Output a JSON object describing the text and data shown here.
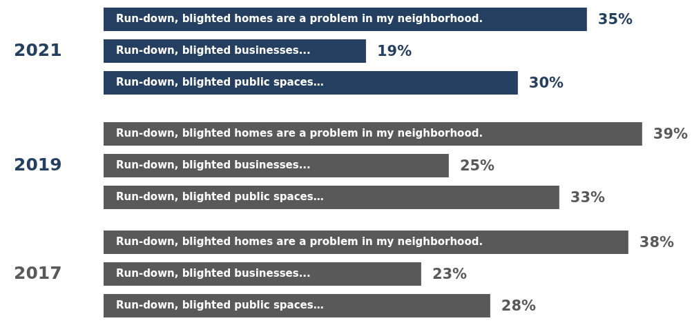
{
  "chart_data": [
    {
      "type": "bar",
      "orientation": "horizontal",
      "title": "2021",
      "categories": [
        "Run-down, blighted homes are a problem in my neighborhood.",
        "Run-down, blighted businesses...",
        "Run-down, blighted public spaces…"
      ],
      "values": [
        35,
        19,
        30
      ],
      "value_labels": [
        "35%",
        "19%",
        "30%"
      ],
      "color": "#243f60",
      "tick_labels": false
    },
    {
      "type": "bar",
      "orientation": "horizontal",
      "title": "2019",
      "categories": [
        "Run-down, blighted homes are a problem in my neighborhood.",
        "Run-down, blighted businesses...",
        "Run-down, blighted public spaces…"
      ],
      "values": [
        39,
        25,
        33
      ],
      "value_labels": [
        "39%",
        "25%",
        "33%"
      ],
      "color": "#595959",
      "tick_labels": false
    },
    {
      "type": "bar",
      "orientation": "horizontal",
      "title": "2017",
      "categories": [
        "Run-down, blighted homes are a problem in my neighborhood.",
        "Run-down, blighted businesses...",
        "Run-down, blighted public spaces…"
      ],
      "values": [
        38,
        23,
        28
      ],
      "value_labels": [
        "38%",
        "23%",
        "28%"
      ],
      "color": "#595959",
      "tick_labels": false
    }
  ]
}
